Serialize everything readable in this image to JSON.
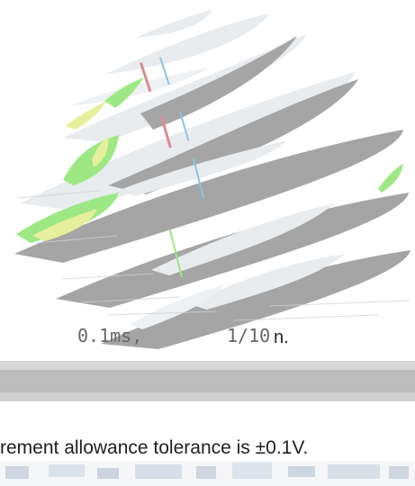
{
  "fragments": {
    "lead": "n.",
    "time": "0.1ms,",
    "ratio": "1/10.",
    "sentence": "rement allowance tolerance is ±0.1V."
  },
  "colors": {
    "stripe_gray": "#a5a5a5",
    "stripe_light": "#e9ecef",
    "accent_green": "#9de884",
    "accent_yellow": "#e6ef9c",
    "accent_red": "#d98b96",
    "accent_blue": "#8fc3df"
  }
}
